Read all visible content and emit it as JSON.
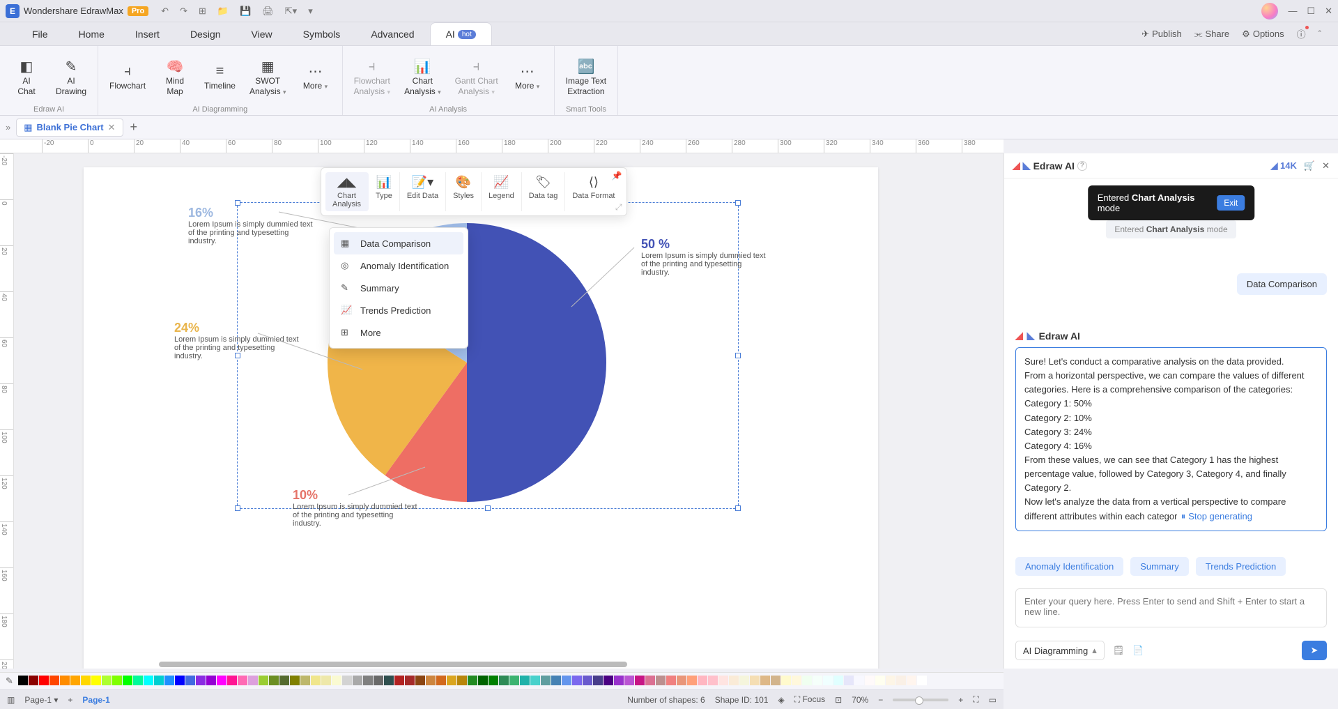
{
  "titlebar": {
    "app_name": "Wondershare EdrawMax",
    "pro_label": "Pro"
  },
  "menu": {
    "items": [
      "File",
      "Home",
      "Insert",
      "Design",
      "View",
      "Symbols",
      "Advanced",
      "AI"
    ],
    "active_index": 7,
    "hot_label": "hot",
    "right": {
      "publish": "Publish",
      "share": "Share",
      "options": "Options"
    }
  },
  "ribbon": {
    "groups": [
      {
        "label": "Edraw AI",
        "buttons": [
          {
            "label": "AI\nChat"
          },
          {
            "label": "AI\nDrawing"
          }
        ]
      },
      {
        "label": "AI Diagramming",
        "buttons": [
          {
            "label": "Flowchart"
          },
          {
            "label": "Mind\nMap"
          },
          {
            "label": "Timeline"
          },
          {
            "label": "SWOT\nAnalysis"
          },
          {
            "label": "More"
          }
        ]
      },
      {
        "label": "AI Analysis",
        "buttons": [
          {
            "label": "Flowchart\nAnalysis",
            "disabled": true
          },
          {
            "label": "Chart\nAnalysis"
          },
          {
            "label": "Gantt Chart\nAnalysis",
            "disabled": true
          },
          {
            "label": "More"
          }
        ]
      },
      {
        "label": "Smart Tools",
        "buttons": [
          {
            "label": "Image Text\nExtraction"
          }
        ]
      }
    ]
  },
  "doctab": {
    "name": "Blank Pie Chart"
  },
  "ruler_h": [
    -20,
    0,
    20,
    40,
    60,
    80,
    100,
    120,
    140,
    160,
    180,
    200,
    220,
    240,
    260,
    280,
    300,
    320,
    340,
    360,
    380
  ],
  "ruler_v": [
    -20,
    0,
    20,
    40,
    60,
    80,
    100,
    120,
    140,
    160,
    180,
    200
  ],
  "float_toolbar": {
    "buttons": [
      "Chart\nAnalysis",
      "Type",
      "Edit Data",
      "Styles",
      "Legend",
      "Data tag",
      "Data Format"
    ],
    "active_index": 0
  },
  "dropdown": {
    "items": [
      "Data Comparison",
      "Anomaly Identification",
      "Summary",
      "Trends Prediction",
      "More"
    ],
    "hover_index": 0
  },
  "pie": {
    "slices": [
      {
        "percent": 50,
        "color": "#4252b5",
        "label_pct": "50 %"
      },
      {
        "percent": 10,
        "color": "#ee6e64",
        "label_pct": "10%"
      },
      {
        "percent": 24,
        "color": "#f0b549",
        "label_pct": "24%"
      },
      {
        "percent": 16,
        "color": "#a3c0ec",
        "label_pct": "16%"
      }
    ],
    "lorem": "Lorem Ipsum is simply dummied text of the printing and typesetting industry."
  },
  "ai_panel": {
    "title": "Edraw AI",
    "credits": "14K",
    "toast_prefix": "Entered ",
    "toast_bold": "Chart Analysis",
    "toast_suffix": " mode",
    "exit": "Exit",
    "mode_chip_prefix": "Entered ",
    "mode_chip_bold": "Chart Analysis",
    "mode_chip_suffix": " mode",
    "user_msg": "Data Comparison",
    "assistant_name": "Edraw AI",
    "response": "Sure! Let's conduct a comparative analysis on the data provided.\nFrom a horizontal perspective, we can compare the values of different categories. Here is a comprehensive comparison of the categories:\nCategory 1: 50%\nCategory 2: 10%\nCategory 3: 24%\nCategory 4: 16%\nFrom these values, we can see that Category 1 has the highest percentage value, followed by Category 3, Category 4, and finally Category 2.\nNow let's analyze the data from a vertical perspective to compare different attributes within each category. Unfortunately",
    "stop_generating": "Stop generating",
    "suggestions": [
      "Anomaly Identification",
      "Summary",
      "Trends Prediction"
    ],
    "input_placeholder": "Enter your query here. Press Enter to send and Shift + Enter to start a new line.",
    "mode_select": "AI Diagramming"
  },
  "swatch_colors": [
    "#000000",
    "#8b0000",
    "#ff0000",
    "#ff4500",
    "#ff8c00",
    "#ffa500",
    "#ffd700",
    "#ffff00",
    "#adff2f",
    "#7fff00",
    "#00ff00",
    "#00fa9a",
    "#00ffff",
    "#00ced1",
    "#1e90ff",
    "#0000ff",
    "#4169e1",
    "#8a2be2",
    "#9400d3",
    "#ff00ff",
    "#ff1493",
    "#ff69b4",
    "#dda0dd",
    "#9acd32",
    "#6b8e23",
    "#556b2f",
    "#808000",
    "#bdb76b",
    "#f0e68c",
    "#eee8aa",
    "#fafad2",
    "#d3d3d3",
    "#a9a9a9",
    "#808080",
    "#696969",
    "#2f4f4f",
    "#b22222",
    "#a52a2a",
    "#8b4513",
    "#cd853f",
    "#d2691e",
    "#daa520",
    "#b8860b",
    "#228b22",
    "#006400",
    "#008000",
    "#2e8b57",
    "#3cb371",
    "#20b2aa",
    "#48d1cc",
    "#5f9ea0",
    "#4682b4",
    "#6495ed",
    "#7b68ee",
    "#6a5acd",
    "#483d8b",
    "#4b0082",
    "#9932cc",
    "#ba55d3",
    "#c71585",
    "#db7093",
    "#bc8f8f",
    "#f08080",
    "#e9967a",
    "#ffa07a",
    "#ffb6c1",
    "#ffc0cb",
    "#ffe4e1",
    "#faebd7",
    "#f5f5dc",
    "#f5deb3",
    "#deb887",
    "#d2b48c",
    "#fffacd",
    "#fff8dc",
    "#f0fff0",
    "#f5fffa",
    "#f0ffff",
    "#e0ffff",
    "#e6e6fa",
    "#f8f8ff",
    "#fffafa",
    "#fffff0",
    "#fdf5e6",
    "#faf0e6",
    "#fff5ee",
    "#ffffff"
  ],
  "statusbar": {
    "page_label": "Page-1",
    "active_page": "Page-1",
    "num_shapes_label": "Number of shapes:",
    "num_shapes": 6,
    "shape_id_label": "Shape ID:",
    "shape_id": 101,
    "focus": "Focus",
    "zoom": "70%"
  }
}
